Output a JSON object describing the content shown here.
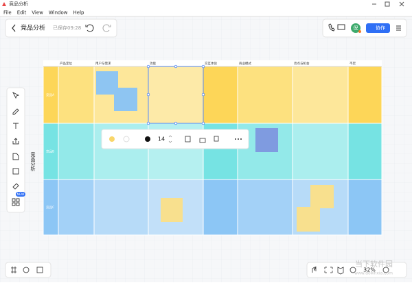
{
  "window": {
    "title": "竞品分析",
    "menu": [
      "File",
      "Edit",
      "View",
      "Window",
      "Help"
    ]
  },
  "toolbar": {
    "doc_title": "竞品分析",
    "saved": "已保存09:28",
    "avatar": "倪",
    "collab": "协作"
  },
  "board": {
    "side_label": "竞品分析",
    "columns": [
      "产品定位",
      "用户与需求",
      "功能",
      "交互体验",
      "商业模式",
      "亮点与机会",
      "不足"
    ],
    "rows": [
      "竞品A",
      "竞品B",
      "竞品C"
    ]
  },
  "float_toolbar": {
    "font_size": "14"
  },
  "left_tools": {
    "badge": "NEW"
  },
  "status": {
    "zoom": "32%"
  },
  "watermark": {
    "name": "当下软件园",
    "url": "www.downxia.com"
  }
}
